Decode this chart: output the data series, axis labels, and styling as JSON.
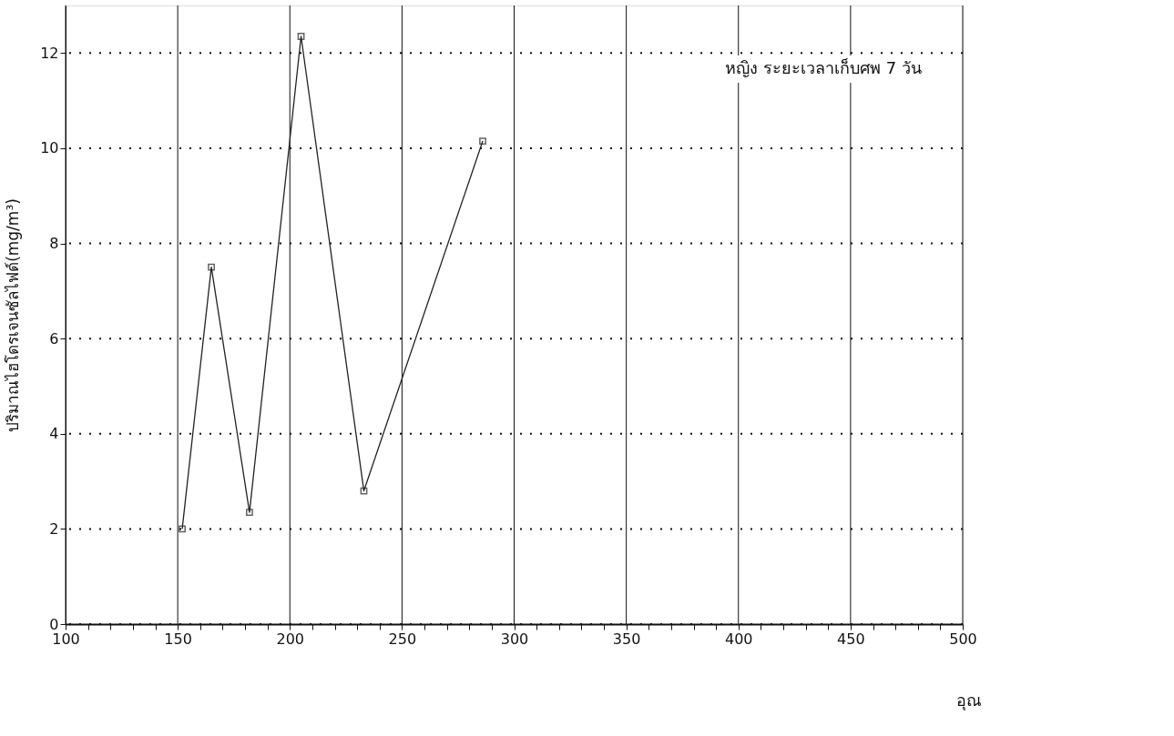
{
  "chart_data": {
    "type": "line",
    "xlabel": "อุณ",
    "ylabel": "ปริมาณไฮโดรเจนซัลไฟด์(mg/m³)",
    "annotations": [
      "หญิง ระยะเวลาเก็บศพ 7 วัน"
    ],
    "x": [
      152,
      165,
      182,
      205,
      233,
      286
    ],
    "series": [
      {
        "color": "#222222",
        "values": [
          2.0,
          7.5,
          2.35,
          12.35,
          2.8,
          10.15
        ]
      }
    ],
    "xlim": [
      100,
      500
    ],
    "xticks": [
      100,
      {
        "value": 110,
        "label": null
      },
      {
        "value": 120,
        "label": null
      },
      {
        "value": 130,
        "label": null
      },
      {
        "value": 140,
        "label": null
      },
      150,
      {
        "value": 160,
        "label": null
      },
      {
        "value": 170,
        "label": null
      },
      {
        "value": 180,
        "label": null
      },
      {
        "value": 190,
        "label": null
      },
      200,
      {
        "value": 210,
        "label": null
      },
      {
        "value": 220,
        "label": null
      },
      {
        "value": 230,
        "label": null
      },
      {
        "value": 240,
        "label": null
      },
      250,
      {
        "value": 260,
        "label": null
      },
      {
        "value": 270,
        "label": null
      },
      {
        "value": 280,
        "label": null
      },
      {
        "value": 290,
        "label": null
      },
      300,
      {
        "value": 310,
        "label": null
      },
      {
        "value": 320,
        "label": null
      },
      {
        "value": 330,
        "label": null
      },
      {
        "value": 340,
        "label": null
      },
      350,
      {
        "value": 360,
        "label": null
      },
      {
        "value": 370,
        "label": null
      },
      {
        "value": 380,
        "label": null
      },
      {
        "value": 390,
        "label": null
      },
      400,
      {
        "value": 410,
        "label": null
      },
      {
        "value": 420,
        "label": null
      },
      {
        "value": 430,
        "label": null
      },
      {
        "value": 440,
        "label": null
      },
      450,
      {
        "value": 460,
        "label": null
      },
      {
        "value": 470,
        "label": null
      },
      {
        "value": 480,
        "label": null
      },
      {
        "value": 490,
        "label": null
      },
      500
    ],
    "ylim": [
      0,
      13
    ],
    "yticks": [
      0,
      2,
      4,
      6,
      8,
      10,
      12
    ],
    "grid": true,
    "marker": "square",
    "line_style": "solid"
  }
}
